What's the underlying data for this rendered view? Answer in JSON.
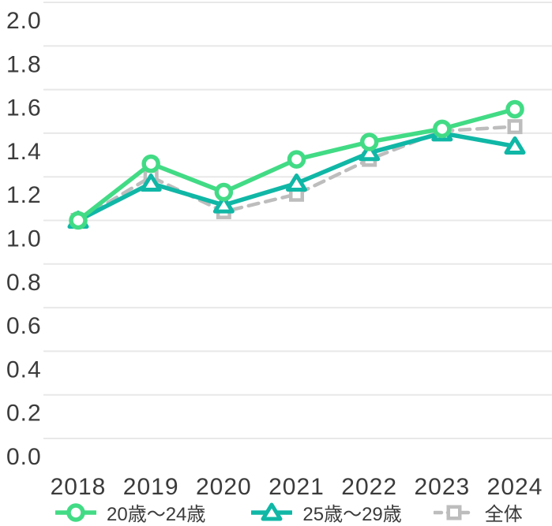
{
  "chart_data": {
    "type": "line",
    "title": "",
    "categories": [
      "2018",
      "2019",
      "2020",
      "2021",
      "2022",
      "2023",
      "2024"
    ],
    "series": [
      {
        "name": "20歳〜24歳",
        "marker": "circle",
        "line": "solid",
        "color": "#42db85",
        "values": [
          1.0,
          1.26,
          1.13,
          1.28,
          1.36,
          1.42,
          1.51
        ]
      },
      {
        "name": "25歳〜29歳",
        "marker": "triangle",
        "line": "solid",
        "color": "#10b7a6",
        "values": [
          1.0,
          1.17,
          1.07,
          1.17,
          1.31,
          1.4,
          1.34
        ]
      },
      {
        "name": "全体",
        "marker": "square",
        "line": "dashed",
        "color": "#bdbdbd",
        "values": [
          1.0,
          1.2,
          1.04,
          1.12,
          1.28,
          1.41,
          1.43
        ]
      }
    ],
    "x_axis": {
      "tick_labels": [
        "2018",
        "2019",
        "2020",
        "2021",
        "2022",
        "2023",
        "2024"
      ]
    },
    "y_axis": {
      "min": 0.0,
      "max": 2.0,
      "step": 0.2,
      "tick_labels": [
        "2.0",
        "1.8",
        "1.6",
        "1.4",
        "1.2",
        "1.0",
        "0.8",
        "0.6",
        "0.4",
        "0.2",
        "0.0"
      ]
    },
    "grid": true,
    "legend_position": "bottom",
    "colors": {
      "text": "#3b3b3b",
      "gridline": "#e8e8e8",
      "background": "#ffffff",
      "marker_fill": "#ffffff"
    }
  }
}
